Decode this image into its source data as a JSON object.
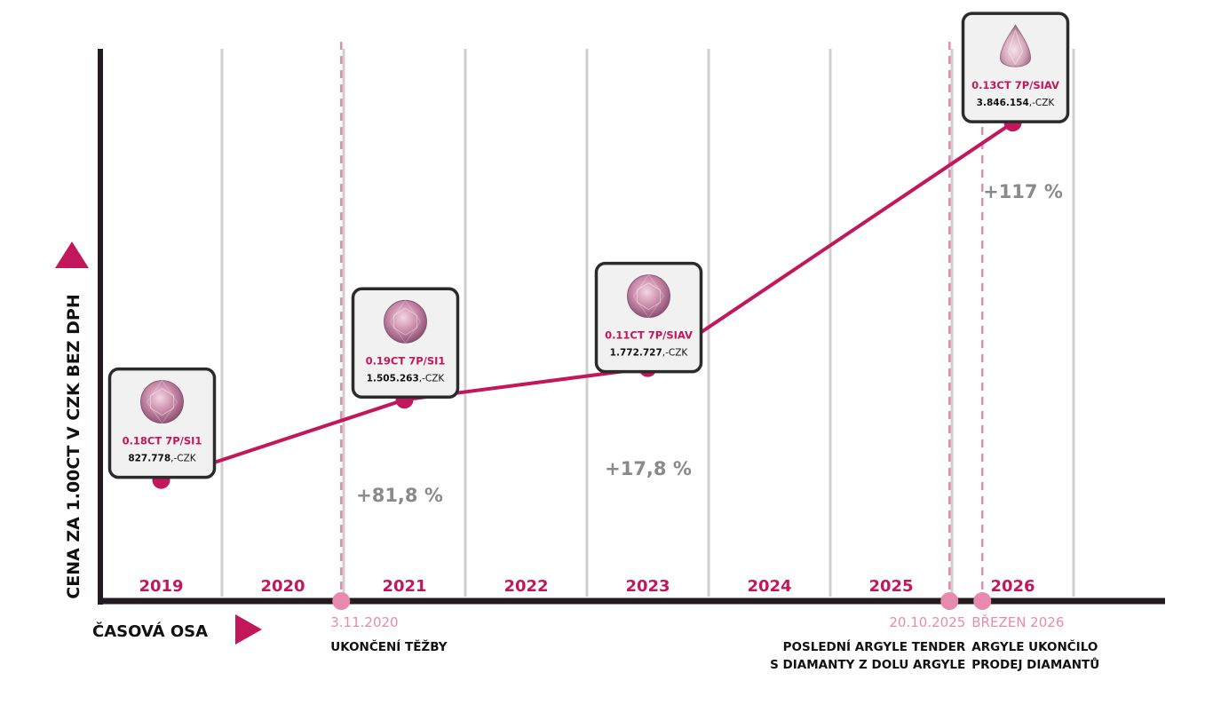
{
  "colors": {
    "accent": "#c2185b",
    "accent_light": "#e88aaf",
    "axis": "#231a22",
    "grid": "#cfcfcf",
    "percent": "#8a8a8a",
    "card_bg": "#f1f1f1",
    "card_border": "#2b2b2b"
  },
  "y_axis_label": "CENA ZA 1.00CT V CZK BEZ DPH",
  "x_axis_label": "ČASOVÁ OSA",
  "chart_data": {
    "type": "line",
    "categories": [
      "2019",
      "2020",
      "2021",
      "2022",
      "2023",
      "2024",
      "2025",
      "2026"
    ],
    "series": [
      {
        "x": [
          2019.5,
          2021.5,
          2023.5,
          2026.5
        ],
        "values": [
          827778,
          1505263,
          1772727,
          3846154
        ]
      }
    ],
    "ylim": [
      0,
      4500000
    ],
    "grid": true,
    "points": [
      {
        "stone": "round",
        "grade": "0.18CT 7P/SI1",
        "price": "827.778",
        "currency": ",-CZK",
        "change": ""
      },
      {
        "stone": "round",
        "grade": "0.19CT 7P/SI1",
        "price": "1.505.263",
        "currency": ",-CZK",
        "change": "+81,8 %"
      },
      {
        "stone": "round",
        "grade": "0.11CT 7P/SIAV",
        "price": "1.772.727",
        "currency": ",-CZK",
        "change": "+17,8 %"
      },
      {
        "stone": "pear",
        "grade": "0.13CT 7P/SIAV",
        "price": "3.846.154",
        "currency": ",-CZK",
        "change": "+117 %"
      }
    ],
    "events": [
      {
        "x": 2020.98,
        "date": "3.11.2020",
        "lines": [
          "UKONČENÍ TĚŽBY"
        ],
        "align": "start"
      },
      {
        "x": 2025.98,
        "date": "20.10.2025",
        "lines": [
          "POSLEDNÍ ARGYLE TENDER",
          "S DIAMANTY Z DOLU ARGYLE"
        ],
        "align": "end"
      },
      {
        "x": 2026.25,
        "date": "BŘEZEN 2026",
        "lines": [
          "ARGYLE UKONČILO",
          "PRODEJ DIAMANTŮ"
        ],
        "align": "start"
      }
    ]
  }
}
